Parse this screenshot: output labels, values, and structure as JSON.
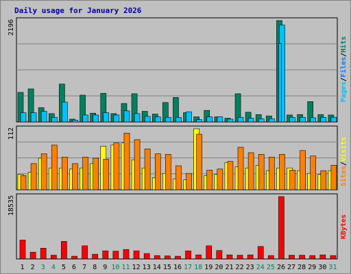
{
  "title": "Daily usage for January 2026",
  "chart_data": {
    "type": "bar",
    "x": [
      "1",
      "2",
      "3",
      "4",
      "5",
      "6",
      "7",
      "8",
      "9",
      "10",
      "11",
      "12",
      "13",
      "14",
      "15",
      "16",
      "17",
      "18",
      "19",
      "20",
      "21",
      "22",
      "23",
      "24",
      "25",
      "26",
      "27",
      "28",
      "29",
      "30",
      "31"
    ],
    "weekend_days": [
      "3",
      "4",
      "10",
      "11",
      "17",
      "18",
      "24",
      "25",
      "31"
    ],
    "panels": [
      {
        "max_label": "2196",
        "ymax": 2196,
        "grid": true,
        "legend_words": [
          "Pages",
          "Files",
          "Hits"
        ],
        "series": [
          {
            "name": "Hits",
            "color": "#008060",
            "values": [
              640,
              715,
              310,
              180,
              820,
              60,
              580,
              190,
              620,
              180,
              400,
              610,
              230,
              170,
              420,
              530,
              200,
              110,
              250,
              110,
              80,
              610,
              210,
              160,
              130,
              2196,
              150,
              160,
              440,
              160,
              150
            ]
          },
          {
            "name": "Files",
            "color": "#00c0ff",
            "values": [
              200,
              200,
              230,
              100,
              430,
              40,
              150,
              150,
              200,
              150,
              240,
              180,
              120,
              110,
              100,
              100,
              220,
              50,
              110,
              110,
              60,
              100,
              80,
              70,
              70,
              2100,
              100,
              100,
              90,
              100,
              100
            ]
          },
          {
            "name": "Pages",
            "color": "#00c0ff",
            "values": [
              0,
              0,
              0,
              0,
              0,
              0,
              0,
              0,
              0,
              0,
              0,
              0,
              0,
              0,
              0,
              0,
              0,
              0,
              0,
              0,
              0,
              0,
              0,
              0,
              0,
              1700,
              0,
              0,
              0,
              0,
              0
            ]
          }
        ]
      },
      {
        "max_label": "112",
        "ymax": 112,
        "grid": true,
        "legend_words": [
          "Sites",
          "Visits"
        ],
        "series": [
          {
            "name": "Visits",
            "color": "#ffff00",
            "values": [
              28,
              32,
              58,
              40,
              40,
              38,
              40,
              48,
              80,
              82,
              86,
              55,
              40,
              22,
              30,
              20,
              18,
              112,
              26,
              28,
              50,
              42,
              40,
              45,
              35,
              40,
              40,
              35,
              30,
              28,
              35
            ]
          },
          {
            "name": "Sites",
            "color": "#ff8000",
            "values": [
              26,
              48,
              66,
              82,
              60,
              48,
              60,
              58,
              56,
              86,
              104,
              92,
              75,
              66,
              65,
              44,
              30,
              102,
              36,
              38,
              52,
              78,
              68,
              65,
              60,
              65,
              36,
              72,
              62,
              35,
              45
            ]
          }
        ]
      },
      {
        "max_label": "18535",
        "ymax": 18535,
        "grid": false,
        "legend_words": [
          "KBytes"
        ],
        "series": [
          {
            "name": "KBytes",
            "color": "#ff0000",
            "values": [
              5600,
              2000,
              3200,
              1100,
              5200,
              800,
              3900,
              1400,
              2400,
              2300,
              2800,
              2400,
              1600,
              1000,
              900,
              800,
              2400,
              1200,
              3900,
              2500,
              1200,
              1100,
              1200,
              3700,
              1000,
              18535,
              1100,
              1100,
              1000,
              1200,
              1000
            ]
          }
        ]
      }
    ]
  }
}
